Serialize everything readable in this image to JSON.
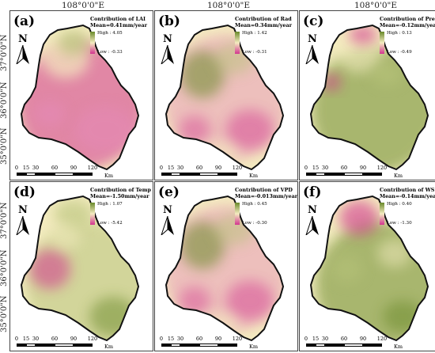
{
  "longitude_labels": [
    "108°0'0\"E",
    "108°0'0\"E",
    "108°0'0\"E"
  ],
  "latitude_labels": {
    "top_row": [
      "37°0'0\"N",
      "36°0'0\"N",
      "35°0'0\"N"
    ],
    "bottom_row": [
      "37°0'0\"N",
      "36°0'0\"N",
      "35°0'0\"N"
    ]
  },
  "north_arrow": {
    "label": "N",
    "icon": "north-arrow-icon"
  },
  "scale_bar": {
    "ticks": [
      "0",
      "15",
      "30",
      "60",
      "90",
      "120"
    ],
    "unit": "Km"
  },
  "legend_high_color": "#6a8a2a",
  "legend_low_color": "#d2358f",
  "panels": [
    {
      "label": "(a)",
      "title": "Contribution of LAI",
      "mean": "Mean=0.41mm/year",
      "high": "High : 4.05",
      "low": "Low : -0.33",
      "dominant": "pink"
    },
    {
      "label": "(b)",
      "title": "Contribution of Rad",
      "mean": "Mean=0.34mm/year",
      "high": "High : 1.42",
      "low": "Low : -0.31",
      "dominant": "mixed"
    },
    {
      "label": "(c)",
      "title": "Contribution of Pre",
      "mean": "Mean=-0.12mm/year",
      "high": "High : 0.13",
      "low": "Low : -0.49",
      "dominant": "green"
    },
    {
      "label": "(d)",
      "title": "Contribution of Temp",
      "mean": "Mean=-1.50mm/year",
      "high": "High : 1.07",
      "low": "Low : -5.42",
      "dominant": "green-pink-west"
    },
    {
      "label": "(e)",
      "title": "Contribution of VPD",
      "mean": "Mean=-0.013mm/year",
      "high": "High : 0.45",
      "low": "Low : -0.30",
      "dominant": "mixed"
    },
    {
      "label": "(f)",
      "title": "Contribution of WS",
      "mean": "Mean=-0.14mm/year",
      "high": "High : 0.40",
      "low": "Low : -1.30",
      "dominant": "green-pink-north"
    }
  ]
}
